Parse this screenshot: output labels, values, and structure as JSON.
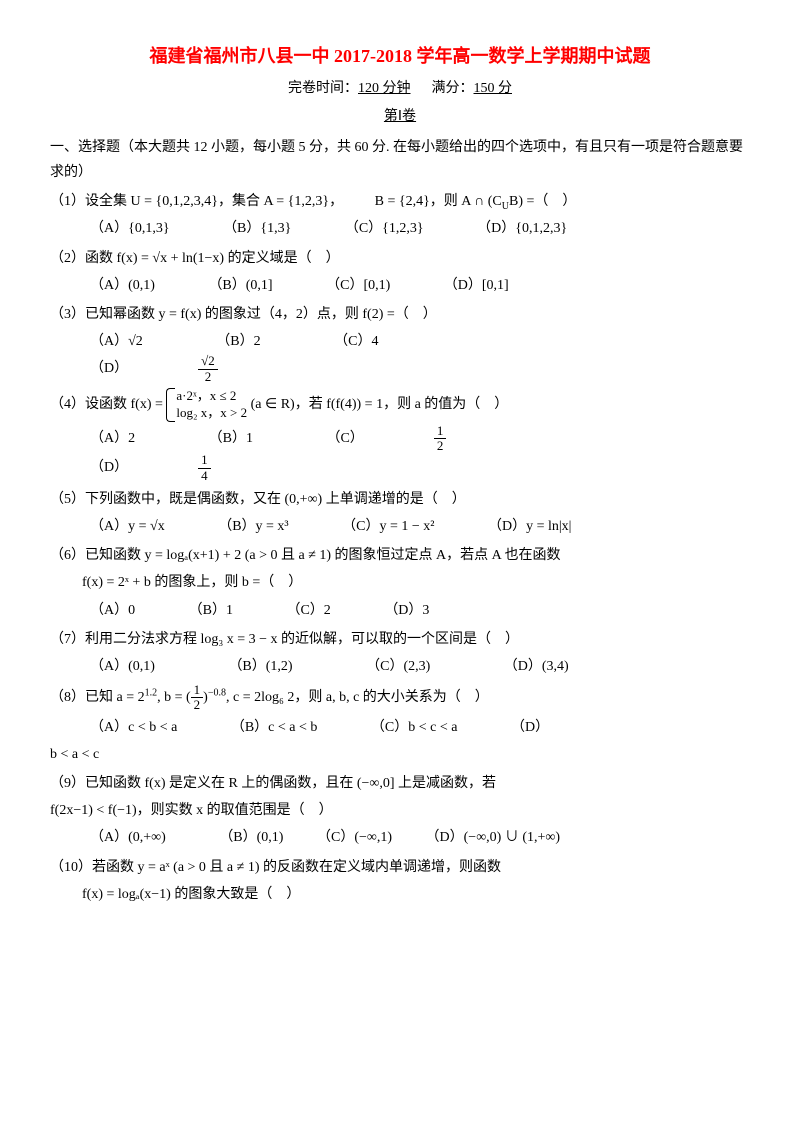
{
  "header": {
    "title": "福建省福州市八县一中 2017-2018 学年高一数学上学期期中试题",
    "time_label": "完卷时间：",
    "time_value": "120 分钟",
    "full_label": "满分：",
    "full_value": "150 分",
    "part": "第Ⅰ卷"
  },
  "section": {
    "head": "一、选择题（本大题共 12 小题，每小题 5 分，共 60 分. 在每小题给出的四个选项中，有且只有一项是符合题意要求的）"
  },
  "q1": {
    "stem1": "（1）设全集 U = {0,1,2,3,4}，集合 A = {1,2,3}，",
    "stem2": "B = {2,4}，则 A ∩ (C",
    "stem2b": "B) =（　）",
    "A": "（A）{0,1,3}",
    "B": "（B）{1,3}",
    "C": "（C）{1,2,3}",
    "D": "（D）{0,1,2,3}"
  },
  "q2": {
    "stem": "（2）函数 f(x) = √x + ln(1−x) 的定义域是（　）",
    "A": "（A）(0,1)",
    "B": "（B）(0,1]",
    "C": "（C）[0,1)",
    "D": "（D）[0,1]"
  },
  "q3": {
    "stem": "（3）已知幂函数 y = f(x) 的图象过（4，2）点，则 f(2) =（　）",
    "A": "（A）√2",
    "B": "（B）2",
    "C": "（C）4",
    "D_pre": "（D）"
  },
  "q4": {
    "stem_pre": "（4）设函数 f(x) = ",
    "row1": "a·2ˣ，x ≤ 2",
    "row2": "log₂ x，x > 2",
    "stem_post": " (a ∈ R)，若 f(f(4)) = 1，则 a 的值为（　）",
    "A": "（A）2",
    "B": "（B）1",
    "C_pre": "（C）",
    "D_pre": "（D）"
  },
  "q5": {
    "stem": "（5）下列函数中，既是偶函数，又在 (0,+∞) 上单调递增的是（　）",
    "A": "（A）y = √x",
    "B": "（B）y = x³",
    "C": "（C）y = 1 − x²",
    "D": "（D）y = ln|x|"
  },
  "q6": {
    "stem1": "（6）已知函数 y = logₐ(x+1) + 2 (a > 0 且 a ≠ 1) 的图象恒过定点 A，若点 A 也在函数",
    "stem2": "f(x) = 2ˣ + b 的图象上，则 b =（　）",
    "A": "（A）0",
    "B": "（B）1",
    "C": "（C）2",
    "D": "（D）3"
  },
  "q7": {
    "stem": "（7）利用二分法求方程 log₃ x = 3 − x 的近似解，可以取的一个区间是（　）",
    "A": "（A）(0,1)",
    "B": "（B）(1,2)",
    "C": "（C）(2,3)",
    "D": "（D）(3,4)"
  },
  "q8": {
    "stem_pre": "（8）已知 a = 2",
    "exp1": "1.2",
    "mid1": ", b = (",
    "mid2": ")",
    "exp2": "−0.8",
    "mid3": ", c = 2log₆ 2，则 a, b, c 的大小关系为（　）",
    "A": "（A）c < b < a",
    "B": "（B）c < a < b",
    "C": "（C）b < c < a",
    "D": "（D）",
    "D2": "b < a < c"
  },
  "q9": {
    "stem1": "（9）已知函数 f(x) 是定义在 R 上的偶函数，且在 (−∞,0] 上是减函数，若",
    "stem2": "f(2x−1) < f(−1)，则实数 x 的取值范围是（　）",
    "A": "（A）(0,+∞)",
    "B": "（B）(0,1)",
    "C": "（C）(−∞,1)",
    "D": "（D）(−∞,0) ∪ (1,+∞)"
  },
  "q10": {
    "stem1": "（10）若函数 y = aˣ (a > 0 且 a ≠ 1) 的反函数在定义域内单调递增，则函数",
    "stem2": "f(x) = logₐ(x−1) 的图象大致是（　）"
  }
}
